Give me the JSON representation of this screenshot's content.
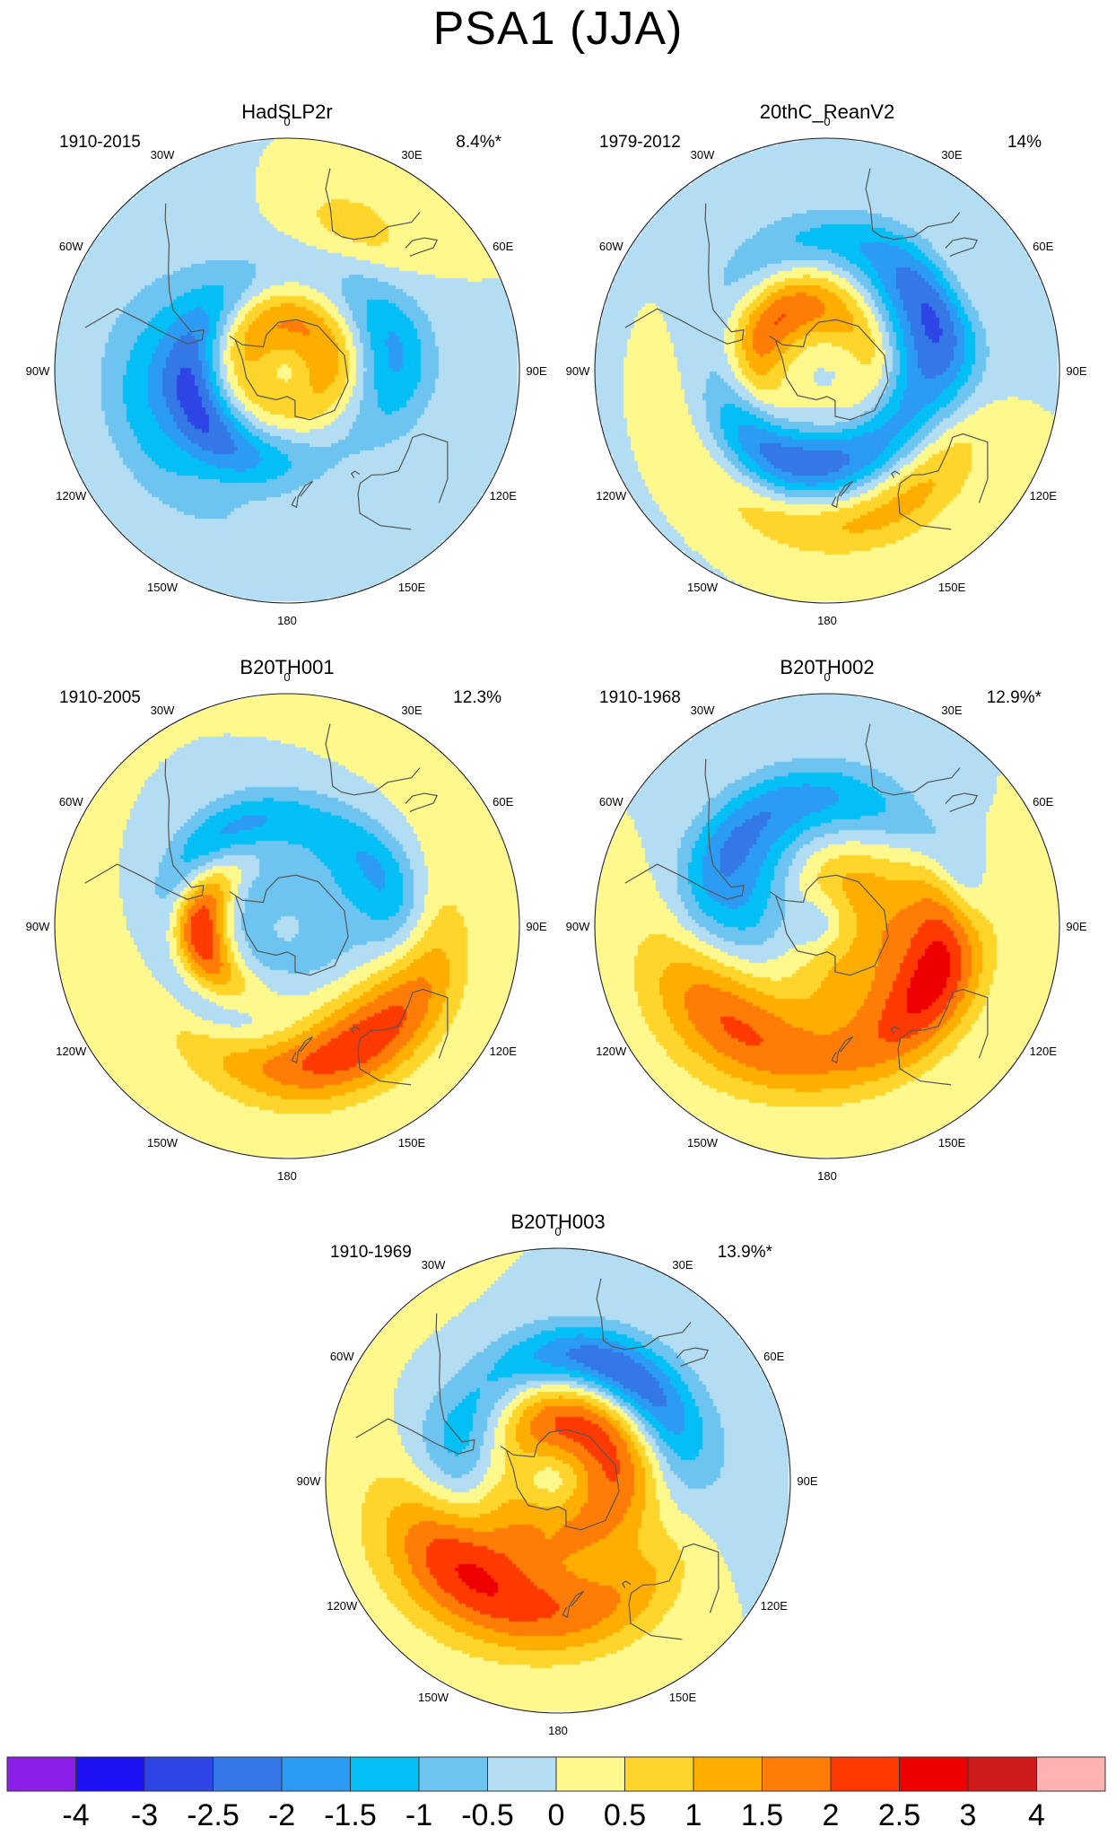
{
  "title": "PSA1 (JJA)",
  "lon_labels": [
    "0",
    "30E",
    "60E",
    "90E",
    "120E",
    "150E",
    "180",
    "150W",
    "120W",
    "90W",
    "60W",
    "30W"
  ],
  "panels": [
    {
      "name": "HadSLP2r",
      "period": "1910-2015",
      "variance": "8.4%*",
      "anomalies": [
        {
          "v": -3.6,
          "lat": -48,
          "lon": -105,
          "sr": 16,
          "sa": 34,
          "rot": 0.0
        },
        {
          "v": -1.6,
          "lat": -48,
          "lon": 80,
          "sr": 11,
          "sa": 22,
          "rot": 0.0
        },
        {
          "v": 1.3,
          "lat": -75,
          "lon": 0,
          "sr": 10,
          "sa": 60,
          "rot": 0.0
        },
        {
          "v": 1.1,
          "lat": -66,
          "lon": -55,
          "sr": 8,
          "sa": 30,
          "rot": 0.0
        },
        {
          "v": 0.9,
          "lat": -40,
          "lon": -140,
          "sr": 8,
          "sa": 28,
          "rot": 0.0
        },
        {
          "v": 0.9,
          "lat": -40,
          "lon": -80,
          "sr": 10,
          "sa": 30,
          "rot": 0.0
        },
        {
          "v": 0.8,
          "lat": -28,
          "lon": 25,
          "sr": 9,
          "sa": 14,
          "rot": 0.0
        }
      ]
    },
    {
      "name": "20thC_ReanV2",
      "period": "1979-2012",
      "variance": "14%",
      "anomalies": [
        {
          "v": -4.0,
          "lat": -50,
          "lon": -155,
          "sr": 14,
          "sa": 38,
          "rot": 0.0
        },
        {
          "v": -2.7,
          "lat": -45,
          "lon": 70,
          "sr": 13,
          "sa": 25,
          "rot": 0.0
        },
        {
          "v": -1.0,
          "lat": -38,
          "lon": 0,
          "sr": 8,
          "sa": 40,
          "rot": 0.0
        },
        {
          "v": 2.8,
          "lat": -62,
          "lon": -65,
          "sr": 9,
          "sa": 30,
          "rot": 0.0
        },
        {
          "v": 1.7,
          "lat": -40,
          "lon": 148,
          "sr": 12,
          "sa": 38,
          "rot": 0.0
        },
        {
          "v": 1.3,
          "lat": -42,
          "lon": -120,
          "sr": 10,
          "sa": 36,
          "rot": 0.0
        },
        {
          "v": 1.0,
          "lat": -30,
          "lon": -170,
          "sr": 9,
          "sa": 40,
          "rot": 0.0
        },
        {
          "v": 0.8,
          "lat": -72,
          "lon": 85,
          "sr": 7,
          "sa": 24,
          "rot": 0.0
        },
        {
          "v": 0.7,
          "lat": -30,
          "lon": 58,
          "sr": 8,
          "sa": 14,
          "rot": 0.0
        }
      ]
    },
    {
      "name": "B20TH001",
      "period": "1910-2005",
      "variance": "12.3%",
      "anomalies": [
        {
          "v": 4.3,
          "lat": -55,
          "lon": -95,
          "sr": 8,
          "sa": 20,
          "rot": 0.0
        },
        {
          "v": -1.8,
          "lat": -48,
          "lon": -40,
          "sr": 9,
          "sa": 32,
          "rot": 0.0
        },
        {
          "v": -2.0,
          "lat": -48,
          "lon": 72,
          "sr": 11,
          "sa": 22,
          "rot": 0.0
        },
        {
          "v": -2.2,
          "lat": -50,
          "lon": -132,
          "sr": 9,
          "sa": 28,
          "rot": 0.0
        },
        {
          "v": -0.9,
          "lat": -75,
          "lon": 0,
          "sr": 10,
          "sa": 60,
          "rot": 0.0
        },
        {
          "v": 2.1,
          "lat": -42,
          "lon": 158,
          "sr": 13,
          "sa": 42,
          "rot": 0.0
        },
        {
          "v": 0.8,
          "lat": -30,
          "lon": 130,
          "sr": 10,
          "sa": 40,
          "rot": 0.0
        }
      ]
    },
    {
      "name": "B20TH002",
      "period": "1910-1968",
      "variance": "12.9%*",
      "anomalies": [
        {
          "v": 2.7,
          "lat": -42,
          "lon": -112,
          "sr": 18,
          "sa": 30,
          "rot": 0.0
        },
        {
          "v": -2.9,
          "lat": -55,
          "lon": -80,
          "sr": 20,
          "sa": 22,
          "rot": 0.0
        },
        {
          "v": -1.7,
          "lat": -40,
          "lon": -20,
          "sr": 10,
          "sa": 40,
          "rot": 0.0
        },
        {
          "v": 2.6,
          "lat": -46,
          "lon": 110,
          "sr": 12,
          "sa": 26,
          "rot": 0.0
        },
        {
          "v": 1.2,
          "lat": -72,
          "lon": 40,
          "sr": 10,
          "sa": 50,
          "rot": 0.0
        },
        {
          "v": 0.9,
          "lat": -35,
          "lon": 170,
          "sr": 10,
          "sa": 36,
          "rot": 0.0
        },
        {
          "v": -0.8,
          "lat": -35,
          "lon": 70,
          "sr": 6,
          "sa": 12,
          "rot": 0.0
        }
      ]
    },
    {
      "name": "B20TH003",
      "period": "1910-1969",
      "variance": "13.9%*",
      "anomalies": [
        {
          "v": 2.8,
          "lat": -42,
          "lon": -110,
          "sr": 18,
          "sa": 30,
          "rot": 0.0
        },
        {
          "v": -3.4,
          "lat": -52,
          "lon": -80,
          "sr": 18,
          "sa": 20,
          "rot": 0.0
        },
        {
          "v": 2.3,
          "lat": -68,
          "lon": 10,
          "sr": 12,
          "sa": 55,
          "rot": 0.0
        },
        {
          "v": 1.8,
          "lat": -38,
          "lon": 155,
          "sr": 12,
          "sa": 40,
          "rot": 0.0
        },
        {
          "v": -2.3,
          "lat": -42,
          "lon": 25,
          "sr": 9,
          "sa": 30,
          "rot": 0.0
        },
        {
          "v": -1.0,
          "lat": -35,
          "lon": 90,
          "sr": 12,
          "sa": 40,
          "rot": 0.0
        }
      ]
    }
  ],
  "colorbar": {
    "labels": [
      "-4",
      "-3",
      "-2.5",
      "-2",
      "-1.5",
      "-1",
      "-0.5",
      "0",
      "0.5",
      "1",
      "1.5",
      "2",
      "2.5",
      "3",
      "4"
    ],
    "levels": [
      -4,
      -3,
      -2.5,
      -2,
      -1.5,
      -1,
      -0.5,
      0,
      0.5,
      1,
      1.5,
      2,
      2.5,
      3,
      4
    ],
    "colors": [
      "#8b1ee8",
      "#1d10f2",
      "#2e45e6",
      "#3378e6",
      "#2b9bf4",
      "#03bff6",
      "#6ec4f0",
      "#b3ddf2",
      "#fff88c",
      "#ffd52b",
      "#ffae00",
      "#ff7d07",
      "#ff3a00",
      "#ee0000",
      "#cf1b1b",
      "#ffb2b2"
    ]
  }
}
